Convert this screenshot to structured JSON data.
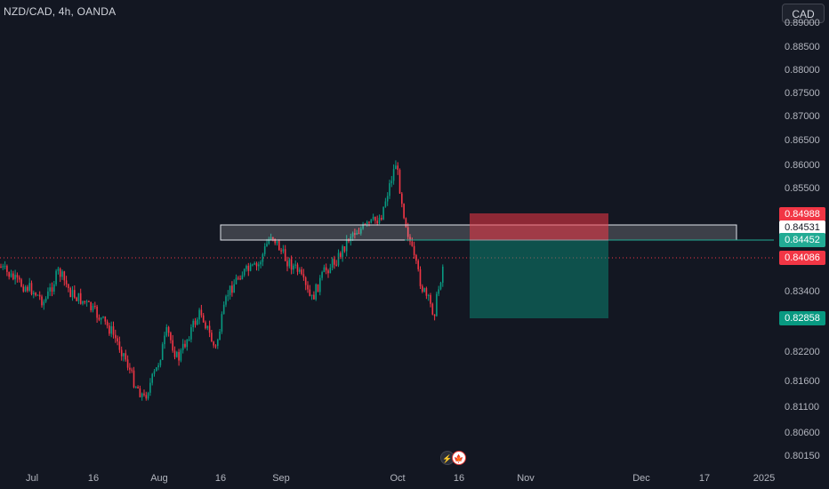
{
  "header": {
    "symbol_title": "NZD/CAD, 4h, OANDA",
    "currency_label": "CAD"
  },
  "price_axis": {
    "ticks": [
      "0.89000",
      "0.88500",
      "0.88000",
      "0.87500",
      "0.87000",
      "0.86500",
      "0.86000",
      "0.85500",
      "0.83400",
      "0.82200",
      "0.81600",
      "0.81100",
      "0.80600",
      "0.80150"
    ],
    "tags": [
      {
        "label": "0.84988",
        "bg": "#f23645",
        "fg": "#ffffff"
      },
      {
        "label": "0.84531",
        "bg": "#ffffff",
        "fg": "#131722"
      },
      {
        "label": "0.84452",
        "bg": "#22ab94",
        "fg": "#ffffff"
      },
      {
        "label": "0.84086",
        "bg": "#f23645",
        "fg": "#ffffff"
      },
      {
        "label": "0.82858",
        "bg": "#089981",
        "fg": "#ffffff"
      }
    ]
  },
  "time_axis": {
    "labels": [
      "Jul",
      "16",
      "Aug",
      "16",
      "Sep",
      "Oct",
      "16",
      "Nov",
      "Dec",
      "17",
      "2025"
    ]
  },
  "events": {
    "flash_icon": "lightning-icon",
    "flag_icon": "canada-flag-icon"
  },
  "chart_data": {
    "type": "candlestick",
    "symbol": "NZD/CAD",
    "interval": "4h",
    "source": "OANDA",
    "x_labels": [
      "Jul",
      "16",
      "Aug",
      "16",
      "Sep",
      "Oct",
      "16",
      "Nov",
      "Dec",
      "17",
      "2025"
    ],
    "price_path": [
      [
        "Jul",
        0.84
      ],
      [
        "Jul",
        0.838
      ],
      [
        "Jul",
        0.835
      ],
      [
        "Jul",
        0.836
      ],
      [
        "Jul",
        0.833
      ],
      [
        "Jul",
        0.839
      ],
      [
        "Jul",
        0.836
      ],
      [
        "16",
        0.832
      ],
      [
        "16",
        0.836
      ],
      [
        "16",
        0.831
      ],
      [
        "16",
        0.829
      ],
      [
        "16",
        0.823
      ],
      [
        "16",
        0.82
      ],
      [
        "16",
        0.817
      ],
      [
        "Aug",
        0.824
      ],
      [
        "Aug",
        0.827
      ],
      [
        "Aug",
        0.825
      ],
      [
        "Aug",
        0.829
      ],
      [
        "Aug",
        0.826
      ],
      [
        "Aug",
        0.831
      ],
      [
        "Aug",
        0.827
      ],
      [
        "16",
        0.834
      ],
      [
        "16",
        0.838
      ],
      [
        "16",
        0.839
      ],
      [
        "16",
        0.841
      ],
      [
        "16",
        0.845
      ],
      [
        "Sep",
        0.84
      ],
      [
        "Sep",
        0.837
      ],
      [
        "Sep",
        0.84
      ],
      [
        "Sep",
        0.834
      ],
      [
        "Sep",
        0.84
      ],
      [
        "Sep",
        0.838
      ],
      [
        "Sep",
        0.845
      ],
      [
        "Sep",
        0.848
      ],
      [
        "Sep",
        0.846
      ],
      [
        "Sep",
        0.849
      ],
      [
        "Sep",
        0.853
      ],
      [
        "Oct",
        0.86
      ],
      [
        "Oct",
        0.856
      ],
      [
        "Oct",
        0.848
      ],
      [
        "Oct",
        0.843
      ],
      [
        "Oct",
        0.835
      ],
      [
        "Oct",
        0.832
      ],
      [
        "Oct",
        0.836
      ],
      [
        "Oct",
        0.841
      ]
    ],
    "rectangle_zone": {
      "top": 0.84531,
      "bottom": 0.84452,
      "from": "16",
      "to": "17"
    },
    "horizontal_line": 0.84452,
    "current_price_line": 0.84086,
    "short_position": {
      "entry": 0.84452,
      "stop_loss": 0.84988,
      "take_profit": 0.82858,
      "stop_color": "#f23645",
      "target_color": "#089981"
    }
  }
}
